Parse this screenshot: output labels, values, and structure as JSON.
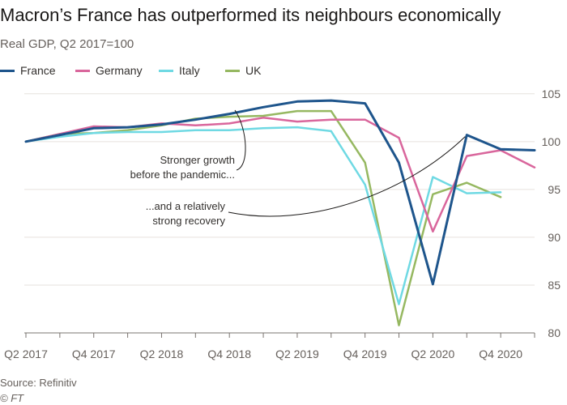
{
  "chart_data": {
    "type": "line",
    "title": "Macron’s France has outperformed its neighbours economically",
    "subtitle": "Real GDP, Q2 2017=100",
    "x": [
      "Q2 2017",
      "Q3 2017",
      "Q4 2017",
      "Q1 2018",
      "Q2 2018",
      "Q3 2018",
      "Q4 2018",
      "Q1 2019",
      "Q2 2019",
      "Q3 2019",
      "Q4 2019",
      "Q1 2020",
      "Q2 2020",
      "Q3 2020",
      "Q4 2020",
      "Q1 2021"
    ],
    "x_tick_labels": [
      "Q2 2017",
      "",
      "Q4 2017",
      "",
      "Q2 2018",
      "",
      "Q4 2018",
      "",
      "Q2 2019",
      "",
      "Q4 2019",
      "",
      "Q2 2020",
      "",
      "Q4 2020",
      ""
    ],
    "y_ticks": [
      80,
      85,
      90,
      95,
      100,
      105
    ],
    "ylim": [
      80,
      106
    ],
    "series": [
      {
        "name": "UK",
        "color": "#96b861",
        "values": [
          100,
          100.8,
          100.9,
          101.2,
          101.7,
          102.4,
          102.6,
          102.7,
          103.2,
          103.2,
          97.8,
          80.8,
          94.5,
          95.7,
          94.2,
          null
        ]
      },
      {
        "name": "Italy",
        "color": "#6fd9e3",
        "values": [
          100,
          100.5,
          100.9,
          101.0,
          101.0,
          101.2,
          101.2,
          101.4,
          101.5,
          101.1,
          95.5,
          83.0,
          96.3,
          94.6,
          94.7,
          null
        ]
      },
      {
        "name": "Germany",
        "color": "#d9669c",
        "values": [
          100,
          100.8,
          101.6,
          101.5,
          101.9,
          101.7,
          101.9,
          102.5,
          102.1,
          102.3,
          102.3,
          100.4,
          90.6,
          98.5,
          99.1,
          97.3
        ]
      },
      {
        "name": "France",
        "color": "#1e558c",
        "values": [
          100,
          100.7,
          101.4,
          101.5,
          101.8,
          102.3,
          102.9,
          103.6,
          104.2,
          104.3,
          104.0,
          97.8,
          85.1,
          100.7,
          99.2,
          99.1
        ]
      }
    ],
    "legend_order": [
      "France",
      "Germany",
      "Italy",
      "UK"
    ],
    "annotations": [
      {
        "lines": [
          "Stronger growth",
          "before the pandemic..."
        ],
        "target_series": "France",
        "target_index": 8
      },
      {
        "lines": [
          "...and a relatively",
          "strong recovery"
        ],
        "target_series": "France",
        "target_index": 13
      }
    ],
    "grid": true
  },
  "footer": {
    "source": "Source: Refinitiv",
    "credit": "© FT"
  }
}
